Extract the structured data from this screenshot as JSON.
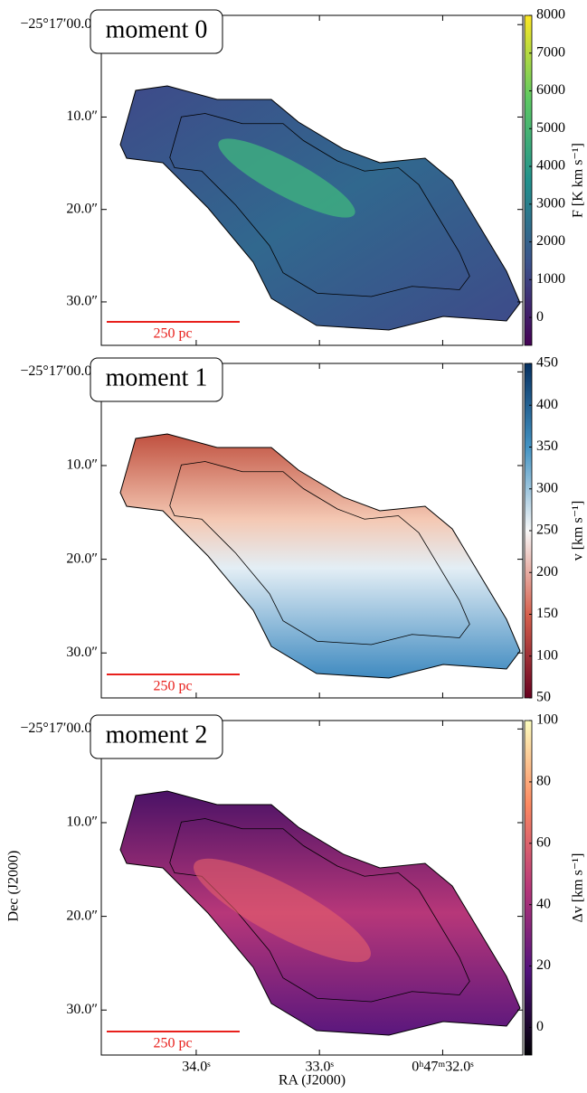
{
  "chart_data": [
    {
      "type": "image",
      "title": "moment 0",
      "ylim": [
        -1.0,
        34.7
      ],
      "yticks": [
        {
          "value": 0,
          "label": "−25°17′00.0″"
        },
        {
          "value": 10,
          "label": "10.0″"
        },
        {
          "value": 20,
          "label": "20.0″"
        },
        {
          "value": 30,
          "label": "30.0″"
        }
      ],
      "scalebar": "250 pc",
      "clabel": "F [K km s⁻¹]",
      "clim": [
        -740,
        8000
      ],
      "cticks": [
        0,
        1000,
        2000,
        3000,
        4000,
        5000,
        6000,
        7000,
        8000
      ],
      "colors": [
        "#440154",
        "#3b528b",
        "#21918c",
        "#5ec962",
        "#fde725"
      ]
    },
    {
      "type": "image",
      "title": "moment 1",
      "ylim": [
        -0.9,
        34.8
      ],
      "yticks": [
        {
          "value": 0,
          "label": "−25°17′00.0″"
        },
        {
          "value": 10,
          "label": "10.0″"
        },
        {
          "value": 20,
          "label": "20.0″"
        },
        {
          "value": 30,
          "label": "30.0″"
        }
      ],
      "scalebar": "250 pc",
      "clabel": "v [km s⁻¹]",
      "clim": [
        50,
        450
      ],
      "cticks": [
        50,
        100,
        150,
        200,
        250,
        300,
        350,
        400,
        450
      ],
      "colors": [
        "#67001f",
        "#d6604d",
        "#f7f7f7",
        "#4393c3",
        "#053061"
      ]
    },
    {
      "type": "image",
      "title": "moment 2",
      "ylim": [
        -0.9,
        34.8
      ],
      "yticks": [
        {
          "value": 0,
          "label": "−25°17′00.0″"
        },
        {
          "value": 10,
          "label": "10.0″"
        },
        {
          "value": 20,
          "label": "20.0″"
        },
        {
          "value": 30,
          "label": "30.0″"
        }
      ],
      "scalebar": "250 pc",
      "clabel": "Δv [km s⁻¹]",
      "clim": [
        -9,
        100
      ],
      "cticks": [
        0,
        20,
        40,
        60,
        80,
        100
      ],
      "colors": [
        "#000004",
        "#51127c",
        "#b73779",
        "#fc8961",
        "#fcfdbf"
      ],
      "ylabel": "Dec (J2000)",
      "xlabel": "RA (J2000)",
      "xlim": [
        34.77,
        31.35
      ],
      "xticks": [
        {
          "value": 34.0,
          "label": "34.0ˢ"
        },
        {
          "value": 33.0,
          "label": "33.0ˢ"
        },
        {
          "value": 32.0,
          "label": "0ʰ47ᵐ32.0ˢ"
        }
      ]
    }
  ]
}
